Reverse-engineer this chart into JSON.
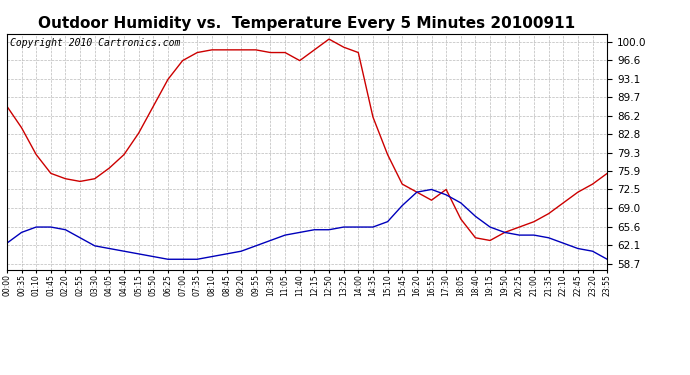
{
  "title": "Outdoor Humidity vs.  Temperature Every 5 Minutes 20100911",
  "copyright": "Copyright 2010 Cartronics.com",
  "yticks": [
    58.7,
    62.1,
    65.6,
    69.0,
    72.5,
    75.9,
    79.3,
    82.8,
    86.2,
    89.7,
    93.1,
    96.6,
    100.0
  ],
  "ylim": [
    57.5,
    101.5
  ],
  "bg_color": "#ffffff",
  "grid_color": "#aaaaaa",
  "red_color": "#cc0000",
  "blue_color": "#0000bb",
  "title_fontsize": 11,
  "copyright_fontsize": 7,
  "x_labels": [
    "00:00",
    "00:35",
    "01:10",
    "01:45",
    "02:20",
    "02:55",
    "03:30",
    "04:05",
    "04:40",
    "05:15",
    "05:50",
    "06:25",
    "07:00",
    "07:35",
    "08:10",
    "08:45",
    "09:20",
    "09:55",
    "10:30",
    "11:05",
    "11:40",
    "12:15",
    "12:50",
    "13:25",
    "14:00",
    "14:35",
    "15:10",
    "15:45",
    "16:20",
    "16:55",
    "17:30",
    "18:05",
    "18:40",
    "19:15",
    "19:50",
    "20:25",
    "21:00",
    "21:35",
    "22:10",
    "22:45",
    "23:20",
    "23:55"
  ],
  "red_data": [
    88.0,
    84.0,
    79.0,
    75.5,
    74.5,
    74.0,
    74.5,
    76.5,
    79.0,
    83.0,
    88.0,
    93.0,
    96.5,
    98.0,
    98.5,
    98.5,
    98.5,
    98.5,
    98.0,
    98.0,
    96.5,
    98.5,
    100.5,
    99.0,
    98.0,
    86.0,
    79.0,
    73.5,
    72.0,
    70.5,
    72.5,
    67.0,
    63.5,
    63.0,
    64.5,
    65.5,
    66.5,
    68.0,
    70.0,
    72.0,
    73.5,
    75.5
  ],
  "blue_data": [
    62.5,
    64.5,
    65.5,
    65.5,
    65.0,
    63.5,
    62.0,
    61.5,
    61.0,
    60.5,
    60.0,
    59.5,
    59.5,
    59.5,
    60.0,
    60.5,
    61.0,
    62.0,
    63.0,
    64.0,
    64.5,
    65.0,
    65.0,
    65.5,
    65.5,
    65.5,
    66.5,
    69.5,
    72.0,
    72.5,
    71.5,
    70.0,
    67.5,
    65.5,
    64.5,
    64.0,
    64.0,
    63.5,
    62.5,
    61.5,
    61.0,
    59.5
  ]
}
